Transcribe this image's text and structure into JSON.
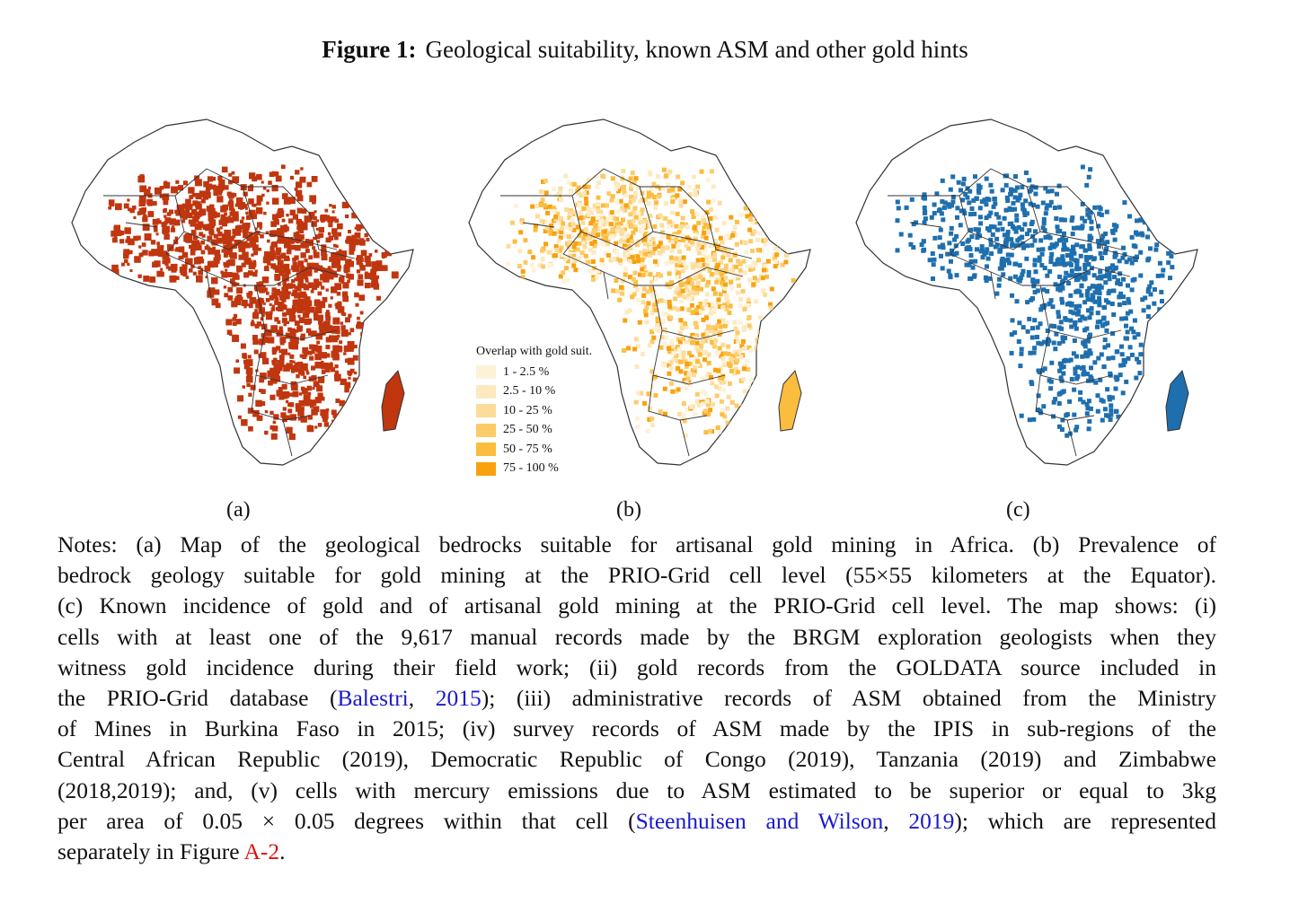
{
  "figure": {
    "label": "Figure 1:",
    "title": "Geological suitability, known ASM and other gold hints"
  },
  "panels": [
    {
      "id": "a",
      "caption": "(a)",
      "fill_color": "#c0360f"
    },
    {
      "id": "b",
      "caption": "(b)",
      "fill_color": "#f5a81c"
    },
    {
      "id": "c",
      "caption": "(c)",
      "fill_color": "#1f6fae"
    }
  ],
  "legend": {
    "title": "Overlap with gold suit.",
    "items": [
      {
        "label": "1 - 2.5 %",
        "color": "#fdf2d8"
      },
      {
        "label": "2.5 - 10 %",
        "color": "#fde9c0"
      },
      {
        "label": "10 - 25 %",
        "color": "#fddc9a"
      },
      {
        "label": "25 - 50 %",
        "color": "#fccb6a"
      },
      {
        "label": "50 - 75 %",
        "color": "#fbbd3e"
      },
      {
        "label": "75 - 100 %",
        "color": "#f9a10f"
      }
    ]
  },
  "notes": {
    "l1": "Notes: (a) Map of the geological bedrocks suitable for artisanal gold mining in Africa. (b) Prevalence of",
    "l2": "bedrock geology suitable for gold mining at the PRIO-Grid cell level (55×55 kilometers at the Equator).",
    "l3": "(c) Known incidence of gold and of artisanal gold mining at the PRIO-Grid cell level. The map shows: (i)",
    "l4": "cells with at least one of the 9,617 manual records made by the BRGM exploration geologists when they",
    "l5": "witness gold incidence during their field work; (ii) gold records from the GOLDATA source included in",
    "l6a": "the PRIO-Grid database (",
    "cite1_name": "Balestri",
    "cite1_sep": ", ",
    "cite1_year": "2015",
    "l6b": "); (iii) administrative records of ASM obtained from the Ministry",
    "l7": "of Mines in Burkina Faso in 2015; (iv) survey records of ASM made by the IPIS in sub-regions of the",
    "l8": "Central African Republic (2019), Democratic Republic of Congo (2019), Tanzania (2019) and Zimbabwe",
    "l9": "(2018,2019); and, (v) cells with mercury emissions due to ASM estimated to be superior or equal to 3kg",
    "l10a": "per area of 0.05 × 0.05 degrees within that cell (",
    "cite2_name": "Steenhuisen and Wilson",
    "cite2_sep": ", ",
    "cite2_year": "2019",
    "l10b": "); which are represented",
    "l11a": "separately in Figure ",
    "ref": "A-2",
    "l11b": "."
  }
}
